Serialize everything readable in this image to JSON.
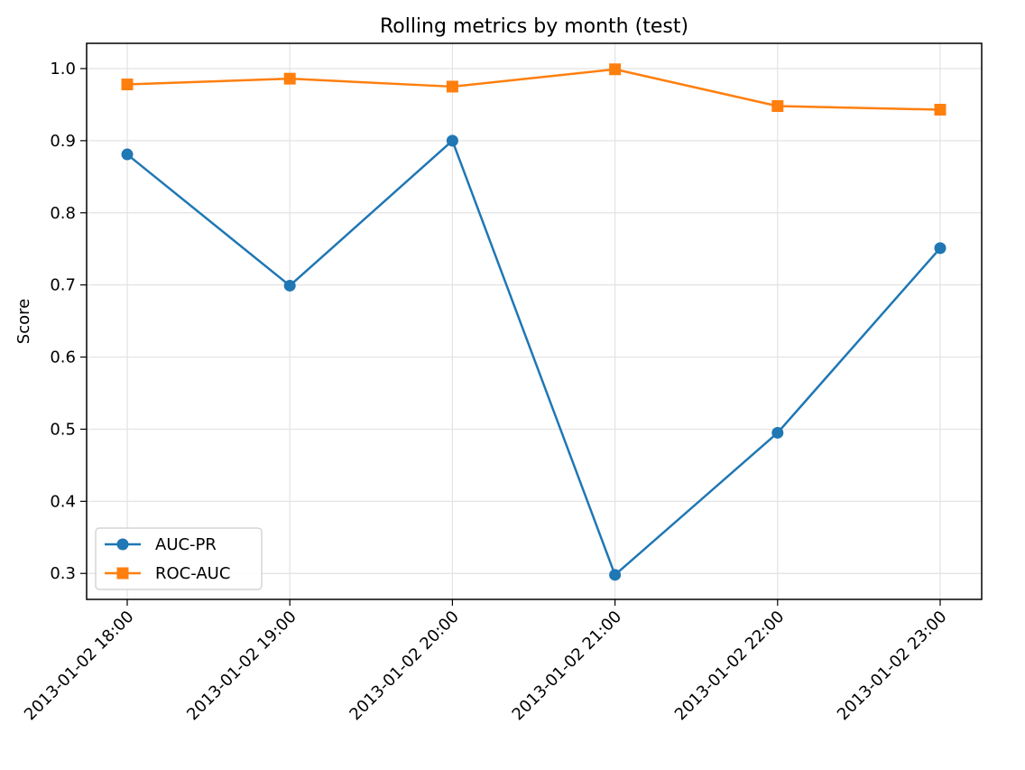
{
  "chart_data": {
    "type": "line",
    "title": "Rolling metrics by month (test)",
    "xlabel": "",
    "ylabel": "Score",
    "categories": [
      "2013-01-02 18:00",
      "2013-01-02 19:00",
      "2013-01-02 20:00",
      "2013-01-02 21:00",
      "2013-01-02 22:00",
      "2013-01-02 23:00"
    ],
    "yticks": [
      "0.3",
      "0.4",
      "0.5",
      "0.6",
      "0.7",
      "0.8",
      "0.9",
      "1.0"
    ],
    "ylim": [
      0.264,
      1.035
    ],
    "grid": true,
    "legend_position": "lower-left",
    "series": [
      {
        "name": "AUC-PR",
        "color": "#1f77b4",
        "marker": "circle",
        "values": [
          0.881,
          0.699,
          0.9,
          0.298,
          0.495,
          0.751
        ]
      },
      {
        "name": "ROC-AUC",
        "color": "#ff7f0e",
        "marker": "square",
        "values": [
          0.978,
          0.986,
          0.975,
          0.999,
          0.948,
          0.943
        ]
      }
    ]
  }
}
